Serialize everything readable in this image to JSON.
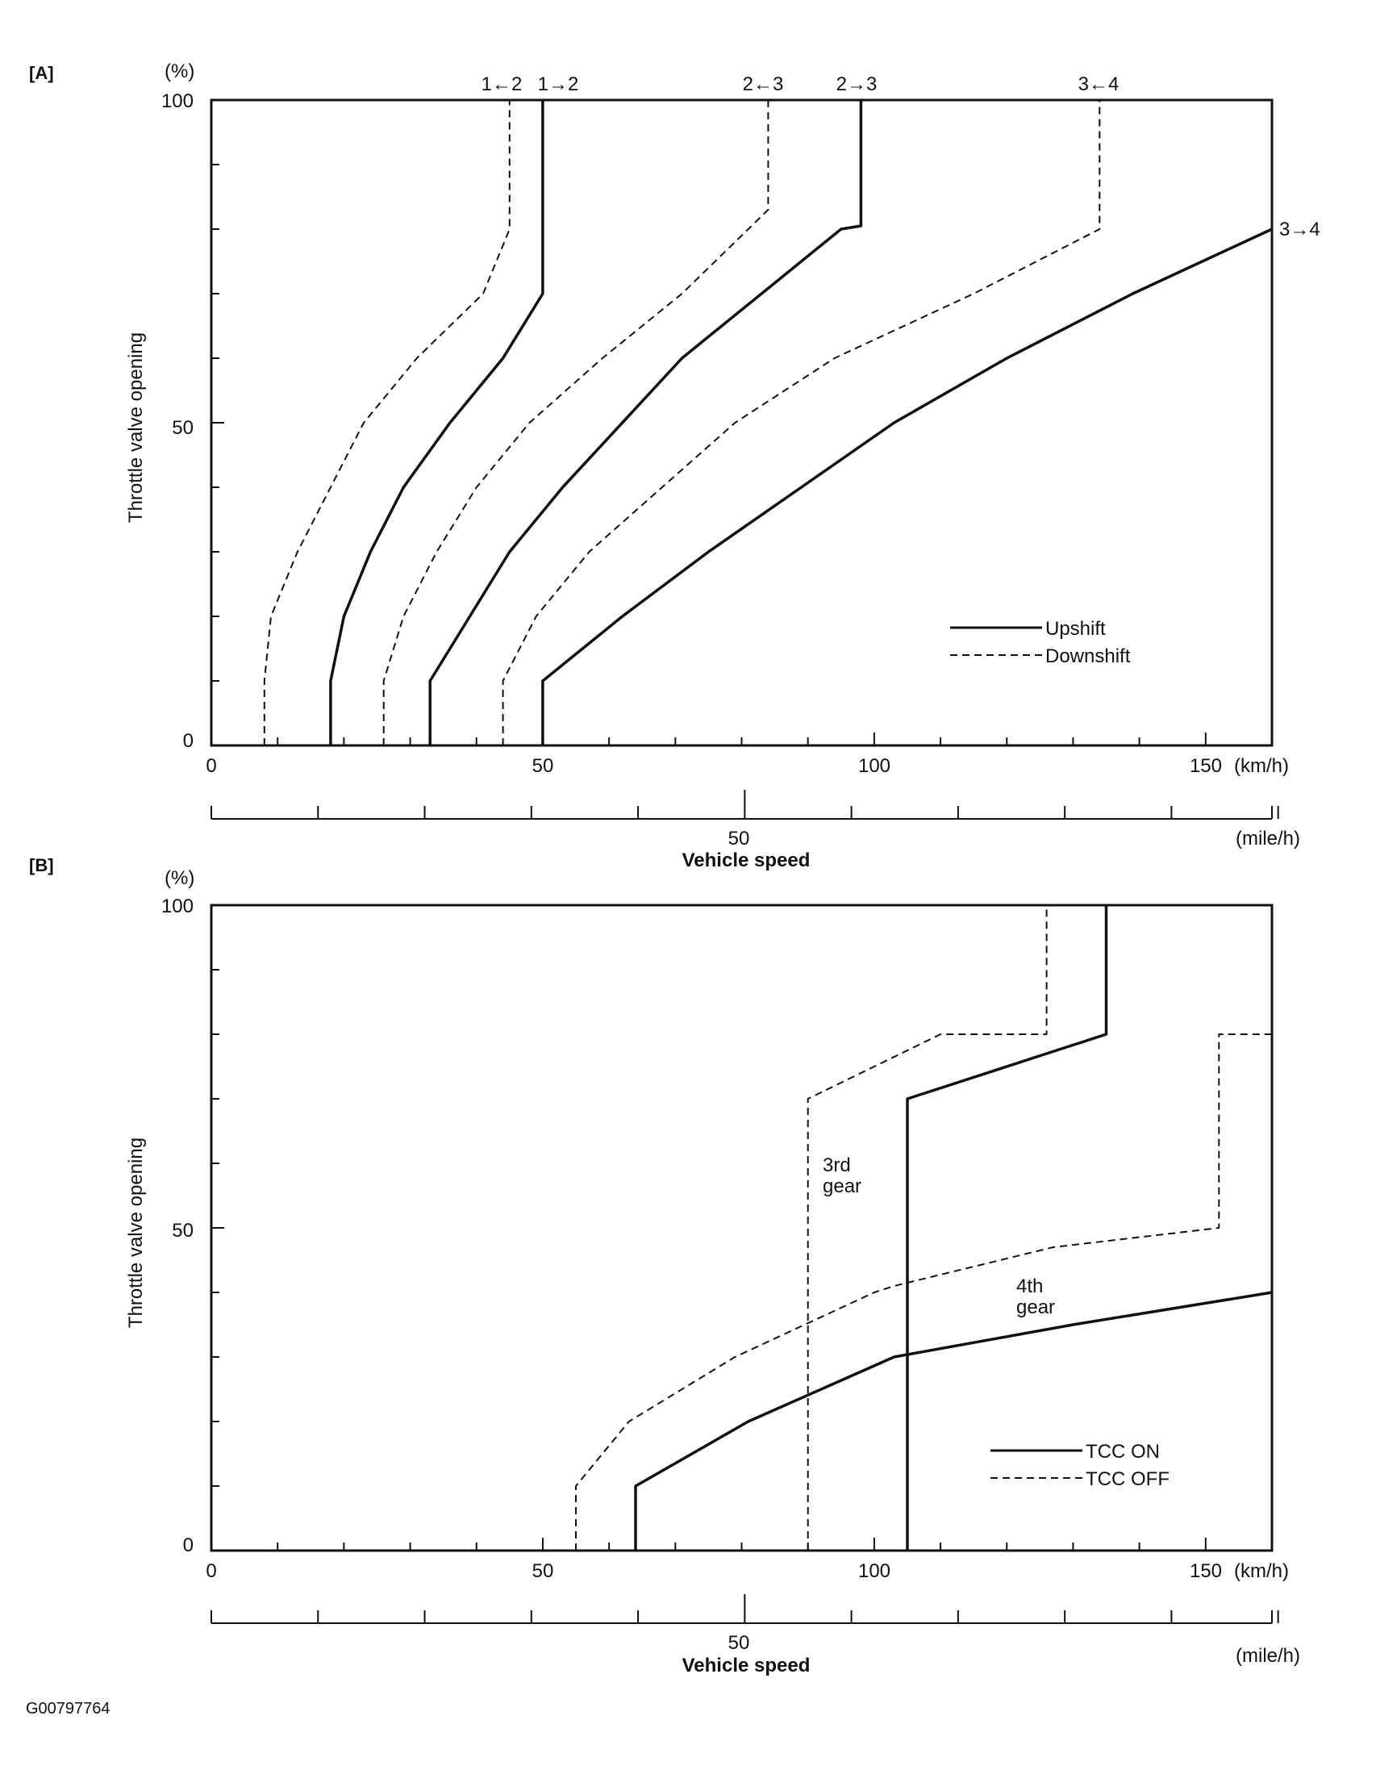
{
  "figure_id": "G00797764",
  "chart_data": [
    {
      "panel": "[A]",
      "type": "line",
      "title": "",
      "xlabel": "Vehicle speed",
      "x_unit": "(km/h)",
      "x2_unit": "(mile/h)",
      "ylabel": "Throttle valve opening",
      "y_unit": "(%)",
      "xlim": [
        0,
        160
      ],
      "ylim": [
        0,
        100
      ],
      "x_ticks": [
        "0",
        "50",
        "100",
        "150"
      ],
      "x2_ticks": [
        "50"
      ],
      "y_ticks": [
        "0",
        "50",
        "100"
      ],
      "legend": {
        "position": "lower-right",
        "entries": [
          {
            "label": "Upshift",
            "style": "solid"
          },
          {
            "label": "Downshift",
            "style": "dashed"
          }
        ]
      },
      "series": [
        {
          "name": "1←2",
          "style": "dashed",
          "points": [
            [
              8,
              0
            ],
            [
              8,
              10
            ],
            [
              9,
              20
            ],
            [
              13,
              30
            ],
            [
              18,
              40
            ],
            [
              23,
              50
            ],
            [
              31,
              60
            ],
            [
              41,
              70
            ],
            [
              45,
              80
            ],
            [
              45,
              100
            ]
          ]
        },
        {
          "name": "1→2",
          "style": "solid",
          "points": [
            [
              18,
              0
            ],
            [
              18,
              10
            ],
            [
              20,
              20
            ],
            [
              24,
              30
            ],
            [
              29,
              40
            ],
            [
              36,
              50
            ],
            [
              44,
              60
            ],
            [
              50,
              70
            ],
            [
              50,
              100
            ]
          ]
        },
        {
          "name": "2←3",
          "style": "dashed",
          "points": [
            [
              26,
              0
            ],
            [
              26,
              10
            ],
            [
              29,
              20
            ],
            [
              34,
              30
            ],
            [
              40,
              40
            ],
            [
              48,
              50
            ],
            [
              59,
              60
            ],
            [
              71,
              70
            ],
            [
              84,
              83
            ],
            [
              84,
              100
            ]
          ]
        },
        {
          "name": "2→3",
          "style": "solid",
          "points": [
            [
              33,
              0
            ],
            [
              33,
              10
            ],
            [
              39,
              20
            ],
            [
              45,
              30
            ],
            [
              53,
              40
            ],
            [
              62,
              50
            ],
            [
              71,
              60
            ],
            [
              83,
              70
            ],
            [
              95,
              80
            ],
            [
              98,
              80.5
            ],
            [
              98,
              100
            ]
          ]
        },
        {
          "name": "3←4",
          "style": "dashed",
          "points": [
            [
              44,
              0
            ],
            [
              44,
              10
            ],
            [
              49,
              20
            ],
            [
              57,
              30
            ],
            [
              68,
              40
            ],
            [
              79,
              50
            ],
            [
              94,
              60
            ],
            [
              115,
              70
            ],
            [
              134,
              80
            ],
            [
              134,
              100
            ]
          ]
        },
        {
          "name": "3→4",
          "style": "solid",
          "points": [
            [
              50,
              0
            ],
            [
              50,
              10
            ],
            [
              62,
              20
            ],
            [
              75,
              30
            ],
            [
              89,
              40
            ],
            [
              103,
              50
            ],
            [
              120,
              60
            ],
            [
              139,
              70
            ],
            [
              160,
              80
            ]
          ]
        }
      ],
      "curve_labels": [
        "1←2",
        "1→2",
        "2←3",
        "2→3",
        "3←4",
        "3→4"
      ]
    },
    {
      "panel": "[B]",
      "type": "line",
      "title": "",
      "xlabel": "Vehicle speed",
      "x_unit": "(km/h)",
      "x2_unit": "(mile/h)",
      "ylabel": "Throttle valve opening",
      "y_unit": "(%)",
      "xlim": [
        0,
        160
      ],
      "ylim": [
        0,
        100
      ],
      "x_ticks": [
        "0",
        "50",
        "100",
        "150"
      ],
      "x2_ticks": [
        "50"
      ],
      "y_ticks": [
        "0",
        "50",
        "100"
      ],
      "legend": {
        "position": "lower-right",
        "entries": [
          {
            "label": "TCC ON",
            "style": "solid"
          },
          {
            "label": "TCC OFF",
            "style": "dashed"
          }
        ]
      },
      "series": [
        {
          "name": "3rd gear TCC OFF",
          "style": "dashed",
          "points": [
            [
              90,
              0
            ],
            [
              90,
              70
            ],
            [
              110,
              80
            ],
            [
              126,
              80
            ],
            [
              126,
              100
            ]
          ]
        },
        {
          "name": "3rd gear TCC ON",
          "style": "solid",
          "points": [
            [
              105,
              0
            ],
            [
              105,
              70
            ],
            [
              135,
              80
            ],
            [
              135,
              100
            ]
          ]
        },
        {
          "name": "4th gear TCC OFF",
          "style": "dashed",
          "points": [
            [
              55,
              0
            ],
            [
              55,
              10
            ],
            [
              63,
              20
            ],
            [
              79,
              30
            ],
            [
              100,
              40
            ],
            [
              103,
              41
            ],
            [
              127,
              47
            ],
            [
              152,
              50
            ],
            [
              152,
              80
            ],
            [
              160,
              80
            ]
          ]
        },
        {
          "name": "4th gear TCC ON",
          "style": "solid",
          "points": [
            [
              64,
              0
            ],
            [
              64,
              10
            ],
            [
              81,
              20
            ],
            [
              103,
              30
            ],
            [
              130,
              35
            ],
            [
              160,
              40
            ]
          ]
        }
      ],
      "annotations": [
        "3rd gear",
        "4th gear"
      ]
    }
  ]
}
